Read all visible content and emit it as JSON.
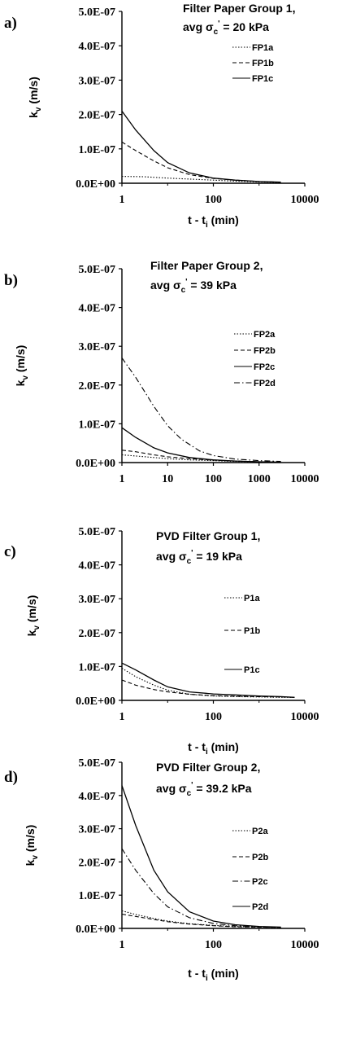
{
  "chart_data": [
    {
      "type": "line",
      "panel_label": "a)",
      "title": "Filter Paper Group 1,",
      "subtitle_prefix": "avg σ",
      "subtitle_suffix": " = 20 kPa",
      "xlabel": "t - t",
      "xlabel_sub": "i",
      "xlabel_unit": " (min)",
      "ylabel": "k",
      "ylabel_sub": "v",
      "ylabel_unit": " (m/s)",
      "xscale": "log",
      "xlim": [
        1,
        10000
      ],
      "ylim": [
        0,
        5e-07
      ],
      "xticks": [
        1,
        100,
        10000
      ],
      "xtick_labels": [
        "1",
        "100",
        "10000"
      ],
      "yticks": [
        0,
        1e-07,
        2e-07,
        3e-07,
        4e-07,
        5e-07
      ],
      "ytick_labels": [
        "0.0E+00",
        "1.0E-07",
        "2.0E-07",
        "3.0E-07",
        "4.0E-07",
        "5.0E-07"
      ],
      "legend_position": "right",
      "series": [
        {
          "name": "FP1a",
          "style": "dotted",
          "x": [
            1,
            3,
            10,
            30,
            100,
            300,
            1000,
            3000
          ],
          "y": [
            2e-08,
            1.9e-08,
            1.5e-08,
            1.2e-08,
            9e-09,
            6e-09,
            4e-09,
            2e-09
          ]
        },
        {
          "name": "FP1b",
          "style": "dashed",
          "x": [
            1,
            2,
            5,
            10,
            30,
            100,
            300,
            1000,
            3000
          ],
          "y": [
            1.2e-07,
            9.5e-08,
            6.5e-08,
            4.5e-08,
            2.5e-08,
            1.4e-08,
            9e-09,
            5e-09,
            3e-09
          ]
        },
        {
          "name": "FP1c",
          "style": "solid",
          "x": [
            1,
            2,
            5,
            10,
            30,
            100,
            300,
            1000,
            3000
          ],
          "y": [
            2.1e-07,
            1.55e-07,
            9.5e-08,
            6e-08,
            3e-08,
            1.5e-08,
            9e-09,
            5e-09,
            3e-09
          ]
        }
      ]
    },
    {
      "type": "line",
      "panel_label": "b)",
      "title": "Filter Paper Group 2,",
      "subtitle_prefix": "avg σ",
      "subtitle_suffix": " = 39 kPa",
      "xlabel": "",
      "xlabel_sub": "",
      "xlabel_unit": "",
      "ylabel": "k",
      "ylabel_sub": "v",
      "ylabel_unit": " (m/s)",
      "xscale": "log",
      "xlim": [
        1,
        10000
      ],
      "ylim": [
        0,
        5e-07
      ],
      "xticks": [
        1,
        10,
        100,
        1000,
        10000
      ],
      "xtick_labels": [
        "1",
        "10",
        "100",
        "1000",
        "10000"
      ],
      "yticks": [
        0,
        1e-07,
        2e-07,
        3e-07,
        4e-07,
        5e-07
      ],
      "ytick_labels": [
        "0.0E+00",
        "1.0E-07",
        "2.0E-07",
        "3.0E-07",
        "4.0E-07",
        "5.0E-07"
      ],
      "legend_position": "right",
      "series": [
        {
          "name": "FP2a",
          "style": "dotted",
          "x": [
            1,
            2,
            5,
            10,
            30,
            100,
            300,
            1000,
            3000
          ],
          "y": [
            2e-08,
            1.7e-08,
            1.3e-08,
            1e-08,
            7e-09,
            5e-09,
            3e-09,
            2e-09,
            1e-09
          ]
        },
        {
          "name": "FP2b",
          "style": "dashed",
          "x": [
            1,
            2,
            5,
            10,
            30,
            100,
            300,
            1000,
            3000
          ],
          "y": [
            3.2e-08,
            2.8e-08,
            2e-08,
            1.5e-08,
            1e-08,
            6e-09,
            4e-09,
            2e-09,
            1e-09
          ]
        },
        {
          "name": "FP2c",
          "style": "solid",
          "x": [
            1,
            2,
            5,
            10,
            30,
            100,
            300,
            1000,
            3000
          ],
          "y": [
            9e-08,
            6.5e-08,
            3.8e-08,
            2.5e-08,
            1.3e-08,
            7e-09,
            4e-09,
            2e-09,
            1e-09
          ]
        },
        {
          "name": "FP2d",
          "style": "dashdot",
          "x": [
            1,
            2,
            5,
            10,
            20,
            50,
            100,
            300,
            1000,
            3000
          ],
          "y": [
            2.7e-07,
            2.2e-07,
            1.45e-07,
            9.5e-08,
            6e-08,
            3e-08,
            1.8e-08,
            9e-09,
            5e-09,
            3e-09
          ]
        }
      ]
    },
    {
      "type": "line",
      "panel_label": "c)",
      "title": "PVD Filter Group 1,",
      "subtitle_prefix": "avg σ",
      "subtitle_suffix": " = 19 kPa",
      "xlabel": "t - t",
      "xlabel_sub": "i",
      "xlabel_unit": " (min)",
      "ylabel": "k",
      "ylabel_sub": "v",
      "ylabel_unit": " (m/s)",
      "xscale": "log",
      "xlim": [
        1,
        10000
      ],
      "ylim": [
        0,
        5e-07
      ],
      "xticks": [
        1,
        100,
        10000
      ],
      "xtick_labels": [
        "1",
        "100",
        "10000"
      ],
      "yticks": [
        0,
        1e-07,
        2e-07,
        3e-07,
        4e-07,
        5e-07
      ],
      "ytick_labels": [
        "0.0E+00",
        "1.0E-07",
        "2.0E-07",
        "3.0E-07",
        "4.0E-07",
        "5.0E-07"
      ],
      "legend_position": "right",
      "series": [
        {
          "name": "P1a",
          "style": "dotted",
          "x": [
            1,
            2,
            5,
            10,
            30,
            100,
            300,
            1000,
            3000,
            6000
          ],
          "y": [
            9.5e-08,
            7e-08,
            4.5e-08,
            3e-08,
            1.8e-08,
            1.3e-08,
            1.1e-08,
            1e-08,
            9e-09,
            9e-09
          ]
        },
        {
          "name": "P1b",
          "style": "dashed",
          "x": [
            1,
            2,
            5,
            10,
            30,
            100,
            300,
            1000,
            3000,
            6000
          ],
          "y": [
            6e-08,
            4.5e-08,
            3.2e-08,
            2.5e-08,
            1.8e-08,
            1.4e-08,
            1.2e-08,
            1.1e-08,
            1e-08,
            9e-09
          ]
        },
        {
          "name": "P1c",
          "style": "solid",
          "x": [
            1,
            2,
            5,
            10,
            30,
            100,
            300,
            1000,
            3000,
            6000
          ],
          "y": [
            1.1e-07,
            9e-08,
            6e-08,
            4e-08,
            2.5e-08,
            1.9e-08,
            1.6e-08,
            1.3e-08,
            1.1e-08,
            9e-09
          ]
        }
      ]
    },
    {
      "type": "line",
      "panel_label": "d)",
      "title": "PVD Filter Group 2,",
      "subtitle_prefix": "avg σ",
      "subtitle_suffix": " = 39.2 kPa",
      "xlabel": "t - t",
      "xlabel_sub": "i",
      "xlabel_unit": " (min)",
      "ylabel": "k",
      "ylabel_sub": "v",
      "ylabel_unit": " (m/s)",
      "xscale": "log",
      "xlim": [
        1,
        10000
      ],
      "ylim": [
        0,
        5e-07
      ],
      "xticks": [
        1,
        100,
        10000
      ],
      "xtick_labels": [
        "1",
        "100",
        "10000"
      ],
      "yticks": [
        0,
        1e-07,
        2e-07,
        3e-07,
        4e-07,
        5e-07
      ],
      "ytick_labels": [
        "0.0E+00",
        "1.0E-07",
        "2.0E-07",
        "3.0E-07",
        "4.0E-07",
        "5.0E-07"
      ],
      "legend_position": "right",
      "series": [
        {
          "name": "P2a",
          "style": "dotted",
          "x": [
            1,
            2,
            5,
            10,
            30,
            100,
            300,
            1000,
            3000
          ],
          "y": [
            5.3e-08,
            4.2e-08,
            3e-08,
            2.2e-08,
            1.4e-08,
            9e-09,
            6e-09,
            4e-09,
            3e-09
          ]
        },
        {
          "name": "P2b",
          "style": "dashed",
          "x": [
            1,
            2,
            5,
            10,
            30,
            100,
            300,
            1000,
            3000
          ],
          "y": [
            4.3e-08,
            3.6e-08,
            2.7e-08,
            2e-08,
            1.3e-08,
            8e-09,
            5e-09,
            4e-09,
            3e-09
          ]
        },
        {
          "name": "P2c",
          "style": "dashdot",
          "x": [
            1,
            2,
            5,
            10,
            30,
            100,
            300,
            1000,
            3000
          ],
          "y": [
            2.4e-07,
            1.75e-07,
            1.05e-07,
            6.5e-08,
            3.2e-08,
            1.5e-08,
            8e-09,
            5e-09,
            3e-09
          ]
        },
        {
          "name": "P2d",
          "style": "solid",
          "x": [
            1,
            2,
            5,
            10,
            30,
            100,
            300,
            1000,
            3000
          ],
          "y": [
            4.3e-07,
            3.1e-07,
            1.75e-07,
            1.1e-07,
            5e-08,
            2.2e-08,
            1.1e-08,
            6e-09,
            4e-09
          ]
        }
      ]
    }
  ]
}
